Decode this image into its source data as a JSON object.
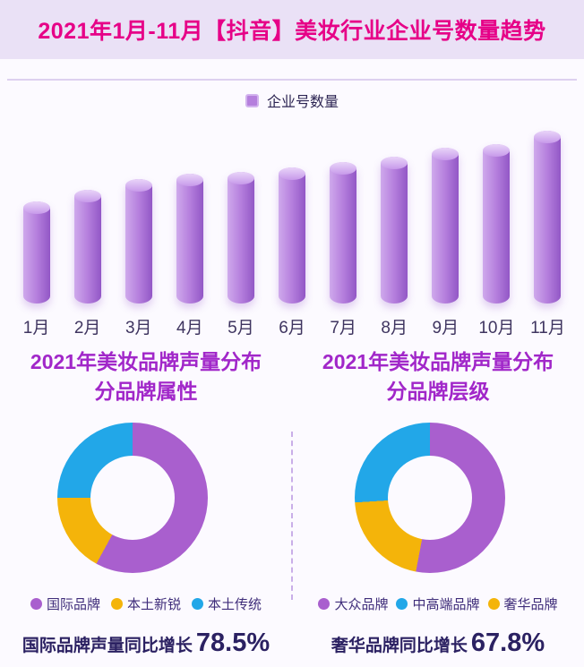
{
  "chart_data": [
    {
      "type": "bar",
      "title": "2021年1月-11月【抖音】美妆行业企业号数量趋势",
      "legend": [
        "企业号数量"
      ],
      "legend_position": "top-center",
      "categories": [
        "1月",
        "2月",
        "3月",
        "4月",
        "5月",
        "6月",
        "7月",
        "8月",
        "9月",
        "10月",
        "11月"
      ],
      "values": [
        59,
        66,
        72,
        75,
        76,
        79,
        82,
        85,
        90,
        92,
        100
      ],
      "xlabel": "",
      "ylabel": "",
      "ylim": [
        0,
        100
      ],
      "grid": false,
      "note": "no numeric axis shown in image; values estimated relative to tallest bar (11月) = 100",
      "bar_color": "#b57fdd"
    },
    {
      "type": "pie",
      "title": "2021年美妆品牌声量分布",
      "subtitle": "分品牌属性",
      "labels": [
        "国际品牌",
        "本土新锐",
        "本土传统"
      ],
      "values": [
        58,
        17,
        25
      ],
      "colors": [
        "#a95fce",
        "#f4b40a",
        "#22a7e8"
      ],
      "draw_order": [
        0,
        1,
        2
      ],
      "donut": true,
      "legend_position": "bottom",
      "annotation_prefix": "国际品牌声量同比增长",
      "annotation_value": "78.5%"
    },
    {
      "type": "pie",
      "title": "2021年美妆品牌声量分布",
      "subtitle": "分品牌层级",
      "labels": [
        "大众品牌",
        "中高端品牌",
        "奢华品牌"
      ],
      "values": [
        53,
        26,
        21
      ],
      "colors": [
        "#a95fce",
        "#22a7e8",
        "#f4b40a"
      ],
      "draw_order": [
        0,
        2,
        1
      ],
      "donut": true,
      "legend_position": "bottom",
      "annotation_prefix": "奢华品牌同比增长",
      "annotation_value": "67.8%"
    }
  ],
  "colors": {
    "header_band": "#eae1f6",
    "title_magenta": "#e60087",
    "section_title_purple": "#a127c9",
    "bar_purple": "#b57fdd",
    "pie_purple": "#a95fce",
    "pie_yellow": "#f4b40a",
    "pie_blue": "#22a7e8",
    "dark_text": "#2b2162"
  }
}
